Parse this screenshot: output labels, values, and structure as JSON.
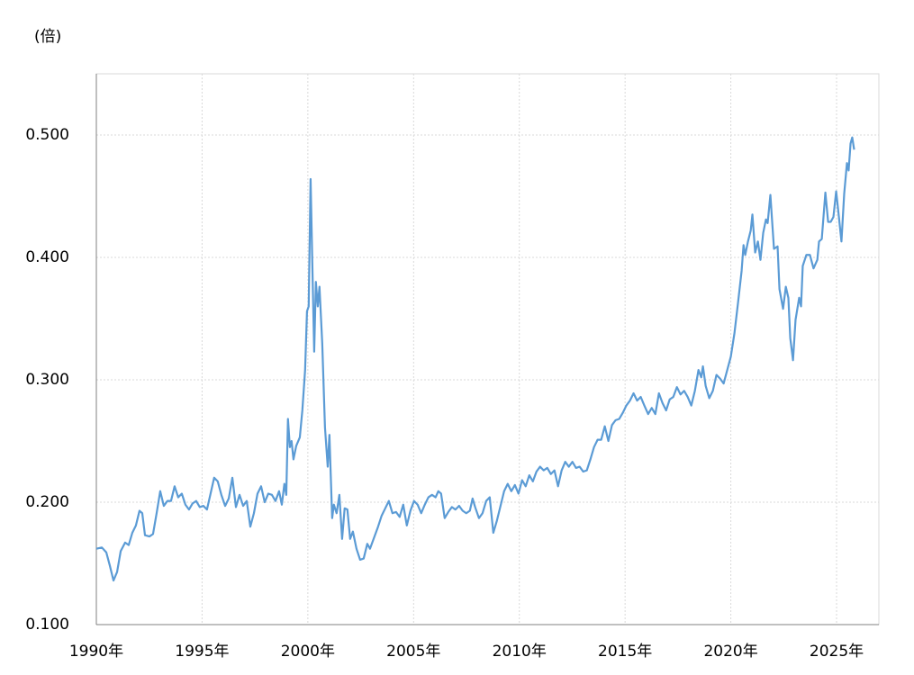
{
  "chart_data": {
    "type": "line",
    "y_label": "(倍)",
    "color": "#5b9bd5",
    "grid": true,
    "xlim": [
      1990,
      2027
    ],
    "ylim": [
      0.1,
      0.55
    ],
    "xticks": [
      {
        "value": 1990,
        "label": "1990年"
      },
      {
        "value": 1995,
        "label": "1995年"
      },
      {
        "value": 2000,
        "label": "2000年"
      },
      {
        "value": 2005,
        "label": "2005年"
      },
      {
        "value": 2010,
        "label": "2010年"
      },
      {
        "value": 2015,
        "label": "2015年"
      },
      {
        "value": 2020,
        "label": "2020年"
      },
      {
        "value": 2025,
        "label": "2025年"
      }
    ],
    "yticks": [
      {
        "value": 0.1,
        "label": "0.100"
      },
      {
        "value": 0.2,
        "label": "0.200"
      },
      {
        "value": 0.3,
        "label": "0.300"
      },
      {
        "value": 0.4,
        "label": "0.400"
      },
      {
        "value": 0.5,
        "label": "0.500"
      }
    ],
    "x": [
      1990.0,
      1990.26,
      1990.47,
      1990.64,
      1990.81,
      1990.98,
      1991.15,
      1991.36,
      1991.53,
      1991.7,
      1991.87,
      1992.04,
      1992.17,
      1992.3,
      1992.51,
      1992.68,
      1992.85,
      1993.02,
      1993.19,
      1993.36,
      1993.53,
      1993.7,
      1993.87,
      1994.04,
      1994.21,
      1994.38,
      1994.55,
      1994.72,
      1994.89,
      1995.06,
      1995.23,
      1995.4,
      1995.57,
      1995.74,
      1995.91,
      1996.09,
      1996.26,
      1996.43,
      1996.6,
      1996.77,
      1996.94,
      1997.11,
      1997.28,
      1997.45,
      1997.62,
      1997.79,
      1997.96,
      1998.13,
      1998.3,
      1998.47,
      1998.64,
      1998.77,
      1998.89,
      1998.98,
      1999.06,
      1999.15,
      1999.23,
      1999.32,
      1999.45,
      1999.62,
      1999.74,
      1999.87,
      1999.96,
      2000.04,
      2000.13,
      2000.21,
      2000.3,
      2000.38,
      2000.47,
      2000.55,
      2000.68,
      2000.81,
      2000.94,
      2001.02,
      2001.15,
      2001.23,
      2001.36,
      2001.49,
      2001.62,
      2001.74,
      2001.87,
      2002.0,
      2002.13,
      2002.3,
      2002.47,
      2002.64,
      2002.81,
      2002.94,
      2003.11,
      2003.32,
      2003.49,
      2003.66,
      2003.83,
      2004.0,
      2004.17,
      2004.34,
      2004.51,
      2004.68,
      2004.85,
      2005.02,
      2005.19,
      2005.36,
      2005.53,
      2005.7,
      2005.87,
      2006.04,
      2006.17,
      2006.3,
      2006.47,
      2006.64,
      2006.81,
      2006.98,
      2007.15,
      2007.32,
      2007.49,
      2007.66,
      2007.79,
      2007.91,
      2008.09,
      2008.26,
      2008.43,
      2008.6,
      2008.77,
      2008.94,
      2009.11,
      2009.28,
      2009.45,
      2009.62,
      2009.79,
      2009.96,
      2010.13,
      2010.3,
      2010.47,
      2010.64,
      2010.81,
      2010.98,
      2011.15,
      2011.32,
      2011.49,
      2011.66,
      2011.83,
      2012.0,
      2012.17,
      2012.34,
      2012.51,
      2012.68,
      2012.85,
      2013.02,
      2013.19,
      2013.36,
      2013.53,
      2013.7,
      2013.87,
      2014.04,
      2014.21,
      2014.38,
      2014.55,
      2014.72,
      2014.89,
      2015.06,
      2015.23,
      2015.4,
      2015.57,
      2015.74,
      2015.91,
      2016.09,
      2016.26,
      2016.43,
      2016.6,
      2016.77,
      2016.94,
      2017.11,
      2017.28,
      2017.45,
      2017.62,
      2017.79,
      2017.96,
      2018.13,
      2018.3,
      2018.47,
      2018.6,
      2018.68,
      2018.81,
      2018.98,
      2019.15,
      2019.32,
      2019.49,
      2019.66,
      2019.83,
      2020.0,
      2020.17,
      2020.34,
      2020.51,
      2020.6,
      2020.68,
      2020.81,
      2020.94,
      2021.02,
      2021.15,
      2021.28,
      2021.4,
      2021.53,
      2021.66,
      2021.74,
      2021.87,
      2022.04,
      2022.21,
      2022.3,
      2022.47,
      2022.6,
      2022.72,
      2022.81,
      2022.94,
      2023.06,
      2023.23,
      2023.32,
      2023.4,
      2023.57,
      2023.74,
      2023.91,
      2024.09,
      2024.17,
      2024.3,
      2024.47,
      2024.6,
      2024.72,
      2024.85,
      2024.98,
      2025.11,
      2025.23,
      2025.36,
      2025.49,
      2025.57,
      2025.66,
      2025.74,
      2025.83
    ],
    "values": [
      0.162,
      0.163,
      0.159,
      0.148,
      0.136,
      0.143,
      0.16,
      0.167,
      0.165,
      0.175,
      0.181,
      0.193,
      0.191,
      0.173,
      0.172,
      0.174,
      0.191,
      0.209,
      0.197,
      0.201,
      0.201,
      0.213,
      0.204,
      0.207,
      0.198,
      0.194,
      0.199,
      0.201,
      0.196,
      0.197,
      0.194,
      0.207,
      0.22,
      0.217,
      0.206,
      0.197,
      0.203,
      0.22,
      0.196,
      0.206,
      0.197,
      0.201,
      0.18,
      0.191,
      0.207,
      0.213,
      0.2,
      0.207,
      0.206,
      0.201,
      0.209,
      0.198,
      0.215,
      0.206,
      0.268,
      0.245,
      0.25,
      0.235,
      0.246,
      0.253,
      0.275,
      0.308,
      0.356,
      0.36,
      0.464,
      0.396,
      0.323,
      0.38,
      0.36,
      0.376,
      0.33,
      0.261,
      0.229,
      0.255,
      0.187,
      0.198,
      0.191,
      0.206,
      0.17,
      0.195,
      0.194,
      0.17,
      0.176,
      0.162,
      0.153,
      0.154,
      0.166,
      0.162,
      0.17,
      0.18,
      0.189,
      0.195,
      0.201,
      0.191,
      0.192,
      0.188,
      0.198,
      0.181,
      0.193,
      0.201,
      0.198,
      0.191,
      0.198,
      0.204,
      0.206,
      0.204,
      0.209,
      0.207,
      0.187,
      0.192,
      0.196,
      0.194,
      0.197,
      0.193,
      0.191,
      0.193,
      0.203,
      0.196,
      0.187,
      0.191,
      0.201,
      0.204,
      0.175,
      0.185,
      0.197,
      0.209,
      0.215,
      0.209,
      0.214,
      0.207,
      0.218,
      0.213,
      0.222,
      0.217,
      0.225,
      0.229,
      0.226,
      0.228,
      0.223,
      0.226,
      0.213,
      0.226,
      0.233,
      0.229,
      0.233,
      0.228,
      0.229,
      0.225,
      0.226,
      0.235,
      0.245,
      0.251,
      0.251,
      0.262,
      0.25,
      0.263,
      0.267,
      0.268,
      0.273,
      0.279,
      0.283,
      0.289,
      0.283,
      0.286,
      0.279,
      0.272,
      0.277,
      0.272,
      0.289,
      0.281,
      0.275,
      0.284,
      0.286,
      0.294,
      0.288,
      0.291,
      0.286,
      0.279,
      0.291,
      0.308,
      0.302,
      0.311,
      0.295,
      0.285,
      0.291,
      0.304,
      0.301,
      0.297,
      0.308,
      0.319,
      0.338,
      0.363,
      0.389,
      0.41,
      0.402,
      0.413,
      0.422,
      0.435,
      0.404,
      0.413,
      0.398,
      0.42,
      0.431,
      0.428,
      0.451,
      0.407,
      0.409,
      0.374,
      0.358,
      0.376,
      0.367,
      0.334,
      0.316,
      0.349,
      0.367,
      0.36,
      0.393,
      0.402,
      0.402,
      0.391,
      0.398,
      0.413,
      0.415,
      0.453,
      0.429,
      0.429,
      0.433,
      0.454,
      0.433,
      0.413,
      0.452,
      0.477,
      0.471,
      0.493,
      0.498,
      0.488
    ]
  }
}
